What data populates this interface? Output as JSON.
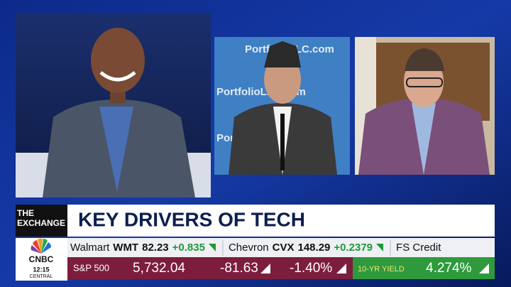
{
  "backdrop_text": "PortfolioLLC.com",
  "lower_third": {
    "show": "THE EXCHANGE",
    "headline": "KEY DRIVERS OF TECH"
  },
  "network": {
    "logo": "CNBC",
    "time": "12:15",
    "zone": "CENTRAL"
  },
  "ticker": [
    {
      "name": "Walmart",
      "symbol": "WMT",
      "price": "82.23",
      "change": "+0.835"
    },
    {
      "name": "Chevron",
      "symbol": "CVX",
      "price": "148.29",
      "change": "+0.2379"
    },
    {
      "name": "FS Credit"
    }
  ],
  "market": {
    "index": "S&P 500",
    "level": "5,732.04",
    "change": "-81.63",
    "percent": "-1.40%",
    "yield_label": "10-YR YIELD",
    "yield_value": "4.274%"
  }
}
